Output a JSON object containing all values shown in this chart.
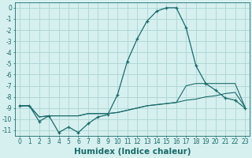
{
  "title": "",
  "xlabel": "Humidex (Indice chaleur)",
  "ylabel": "",
  "bg_color": "#d6f0ef",
  "grid_color": "#b0d8d8",
  "line_color": "#1a6b6b",
  "x_values": [
    0,
    1,
    2,
    3,
    4,
    5,
    6,
    7,
    8,
    9,
    10,
    11,
    12,
    13,
    14,
    15,
    16,
    17,
    18,
    19,
    20,
    21,
    22,
    23
  ],
  "series1": [
    -8.8,
    -8.8,
    -10.2,
    -9.7,
    -11.2,
    -10.7,
    -11.2,
    -10.4,
    -9.8,
    -9.6,
    -7.8,
    -4.8,
    -2.8,
    -1.2,
    -0.3,
    0.0,
    0.0,
    -1.8,
    -5.2,
    -6.8,
    -7.4,
    -8.1,
    -8.3,
    -9.0
  ],
  "series2": [
    -8.8,
    -8.8,
    -9.8,
    -9.7,
    -9.7,
    -9.7,
    -9.7,
    -9.5,
    -9.5,
    -9.5,
    -9.4,
    -9.2,
    -9.0,
    -8.8,
    -8.7,
    -8.6,
    -8.5,
    -8.3,
    -8.2,
    -8.0,
    -7.9,
    -7.7,
    -7.6,
    -8.9
  ],
  "series3": [
    -8.8,
    -8.8,
    -9.8,
    -9.7,
    -9.7,
    -9.7,
    -9.7,
    -9.5,
    -9.5,
    -9.5,
    -9.4,
    -9.2,
    -9.0,
    -8.8,
    -8.7,
    -8.6,
    -8.5,
    -7.0,
    -6.8,
    -6.8,
    -6.8,
    -6.8,
    -6.8,
    -8.9
  ],
  "xlim": [
    -0.5,
    23.5
  ],
  "ylim": [
    -11.5,
    0.5
  ],
  "yticks": [
    0,
    -1,
    -2,
    -3,
    -4,
    -5,
    -6,
    -7,
    -8,
    -9,
    -10,
    -11
  ],
  "xticks": [
    0,
    1,
    2,
    3,
    4,
    5,
    6,
    7,
    8,
    9,
    10,
    11,
    12,
    13,
    14,
    15,
    16,
    17,
    18,
    19,
    20,
    21,
    22,
    23
  ],
  "tick_fontsize": 5.5,
  "xlabel_fontsize": 7.5
}
